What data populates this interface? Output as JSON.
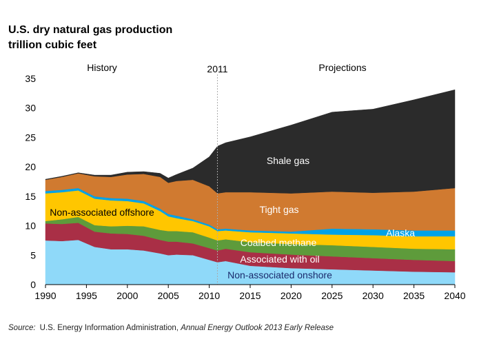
{
  "chart_data": {
    "type": "area",
    "stacked": true,
    "title": "U.S. dry natural gas production",
    "subtitle": "trillion cubic feet",
    "ylim": [
      0,
      35
    ],
    "xlim": [
      1990,
      2040
    ],
    "xticks": [
      1990,
      1995,
      2000,
      2005,
      2010,
      2015,
      2020,
      2025,
      2030,
      2035,
      2040
    ],
    "yticks": [
      0,
      5,
      10,
      15,
      20,
      25,
      30,
      35
    ],
    "grid": false,
    "divider_year": 2011,
    "divider_label": "2011",
    "history_label": "History",
    "projections_label": "Projections",
    "x": [
      1990,
      1992,
      1994,
      1996,
      1998,
      2000,
      2002,
      2004,
      2005,
      2006,
      2008,
      2010,
      2011,
      2012,
      2015,
      2020,
      2025,
      2030,
      2035,
      2040
    ],
    "series": [
      {
        "name": "Non-associated onshore",
        "color": "#8fd9f9",
        "values": [
          7.5,
          7.4,
          7.6,
          6.4,
          6.0,
          6.0,
          5.8,
          5.3,
          5.0,
          5.1,
          5.0,
          4.2,
          3.8,
          4.0,
          3.2,
          2.8,
          2.6,
          2.4,
          2.2,
          2.1
        ]
      },
      {
        "name": "Associated with oil",
        "color": "#a92f46",
        "values": [
          2.9,
          2.9,
          2.9,
          2.6,
          2.7,
          2.6,
          2.5,
          2.3,
          2.3,
          2.2,
          2.0,
          2.0,
          2.0,
          2.1,
          2.3,
          2.3,
          2.2,
          2.1,
          2.0,
          1.9
        ]
      },
      {
        "name": "Coalbed methane",
        "color": "#5e9b3b",
        "values": [
          0.4,
          0.8,
          1.0,
          1.1,
          1.2,
          1.4,
          1.6,
          1.7,
          1.8,
          1.8,
          1.9,
          1.8,
          1.7,
          1.6,
          1.7,
          1.8,
          1.9,
          1.9,
          1.9,
          2.0
        ]
      },
      {
        "name": "Non-associated offshore",
        "color": "#ffc600",
        "values": [
          4.7,
          4.6,
          4.5,
          4.5,
          4.4,
          4.2,
          3.9,
          3.2,
          2.5,
          2.2,
          1.9,
          1.9,
          1.6,
          1.5,
          1.7,
          1.8,
          1.8,
          2.0,
          2.1,
          2.2
        ]
      },
      {
        "name": "Alaska",
        "color": "#00a2e8",
        "values": [
          0.4,
          0.4,
          0.4,
          0.4,
          0.4,
          0.4,
          0.4,
          0.4,
          0.4,
          0.4,
          0.3,
          0.3,
          0.3,
          0.3,
          0.3,
          0.3,
          1.0,
          1.0,
          1.0,
          1.0
        ]
      },
      {
        "name": "Tight gas",
        "color": "#d07a30",
        "values": [
          1.9,
          2.2,
          2.5,
          3.4,
          3.6,
          4.1,
          4.6,
          5.4,
          5.3,
          5.9,
          6.7,
          6.5,
          6.1,
          6.2,
          6.5,
          6.5,
          6.3,
          6.2,
          6.6,
          7.2
        ]
      },
      {
        "name": "Shale gas",
        "color": "#2b2b2b",
        "values": [
          0.1,
          0.1,
          0.1,
          0.2,
          0.3,
          0.4,
          0.4,
          0.6,
          0.8,
          1.1,
          2.0,
          5.0,
          8.0,
          8.4,
          9.4,
          11.6,
          13.5,
          14.2,
          15.6,
          16.7
        ]
      }
    ],
    "source_prefix": "Source:",
    "source_text": "U.S. Energy Information Administration, ",
    "source_italic": "Annual Energy Outlook 2013 Early Release"
  }
}
